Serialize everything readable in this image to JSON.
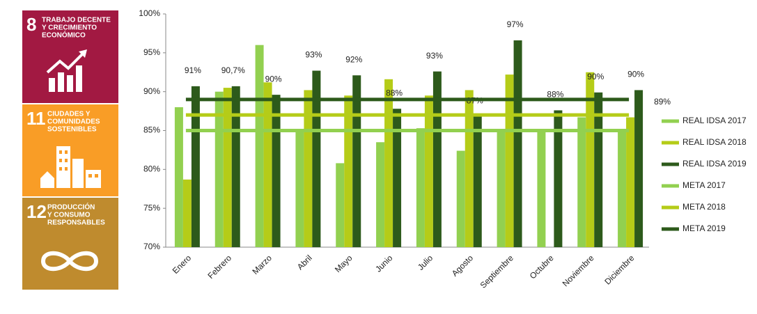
{
  "sidebar": [
    {
      "number": "8",
      "lines": [
        "TRABAJO DECENTE",
        "Y CRECIMIENTO",
        "ECONÓMICO"
      ],
      "color": "#a21942"
    },
    {
      "number": "11",
      "lines": [
        "CIUDADES Y",
        "COMUNIDADES",
        "SOSTENIBLES"
      ],
      "color": "#f99d26"
    },
    {
      "number": "12",
      "lines": [
        "PRODUCCIÓN",
        "Y CONSUMO",
        "RESPONSABLES"
      ],
      "color": "#bf8b2e"
    }
  ],
  "chart_data": {
    "type": "bar",
    "categories": [
      "Enero",
      "Febrero",
      "Marzo",
      "Abril",
      "Mayo",
      "Junio",
      "Julio",
      "Agosto",
      "Septiembre",
      "Octubre",
      "Noviembre",
      "Diciembre"
    ],
    "series": [
      {
        "name": "REAL IDSA 2017",
        "type": "bar",
        "color": "#92d050",
        "values": [
          88,
          90,
          96,
          85,
          80.8,
          83.5,
          85.3,
          82.4,
          85.1,
          85,
          86.7,
          85
        ]
      },
      {
        "name": "REAL IDSA 2018",
        "type": "bar",
        "color": "#b5cc18",
        "values": [
          78.7,
          90.5,
          91.2,
          90.2,
          89.5,
          91.6,
          89.5,
          90.2,
          92.2,
          null,
          92.5,
          86.7
        ]
      },
      {
        "name": "REAL IDSA 2019",
        "type": "bar",
        "color": "#2d5a1b",
        "values": [
          90.7,
          90.7,
          89.6,
          92.7,
          92.1,
          87.8,
          92.6,
          86.8,
          96.6,
          87.6,
          89.9,
          90.2
        ],
        "value_labels": [
          "91%",
          "90,7%",
          "90%",
          "93%",
          "92%",
          "88%",
          "93%",
          "87%",
          "97%",
          "88%",
          "90%",
          "90%"
        ]
      },
      {
        "name": "META 2017",
        "type": "line",
        "color": "#92d050",
        "values": [
          85,
          85,
          85,
          85,
          85,
          85,
          85,
          85,
          85,
          85,
          85,
          85
        ]
      },
      {
        "name": "META 2018",
        "type": "line",
        "color": "#b5cc18",
        "values": [
          87,
          87,
          87,
          87,
          87,
          87,
          87,
          87,
          87,
          87,
          87,
          87
        ]
      },
      {
        "name": "META 2019",
        "type": "line",
        "color": "#2d5a1b",
        "values": [
          89,
          89,
          89,
          89,
          89,
          89,
          89,
          89,
          89,
          89,
          89,
          89
        ],
        "value_labels": [
          null,
          null,
          null,
          null,
          null,
          null,
          null,
          null,
          null,
          null,
          null,
          "89%"
        ]
      }
    ],
    "ylim": [
      70,
      100
    ],
    "yticks": [
      {
        "value": 70,
        "label": "70%"
      },
      {
        "value": 75,
        "label": "75%"
      },
      {
        "value": 80,
        "label": "80%"
      },
      {
        "value": 85,
        "label": "85%"
      },
      {
        "value": 90,
        "label": "90%"
      },
      {
        "value": 95,
        "label": "95%"
      },
      {
        "value": 100,
        "label": "100%"
      }
    ],
    "grid": false,
    "legend": "right"
  }
}
